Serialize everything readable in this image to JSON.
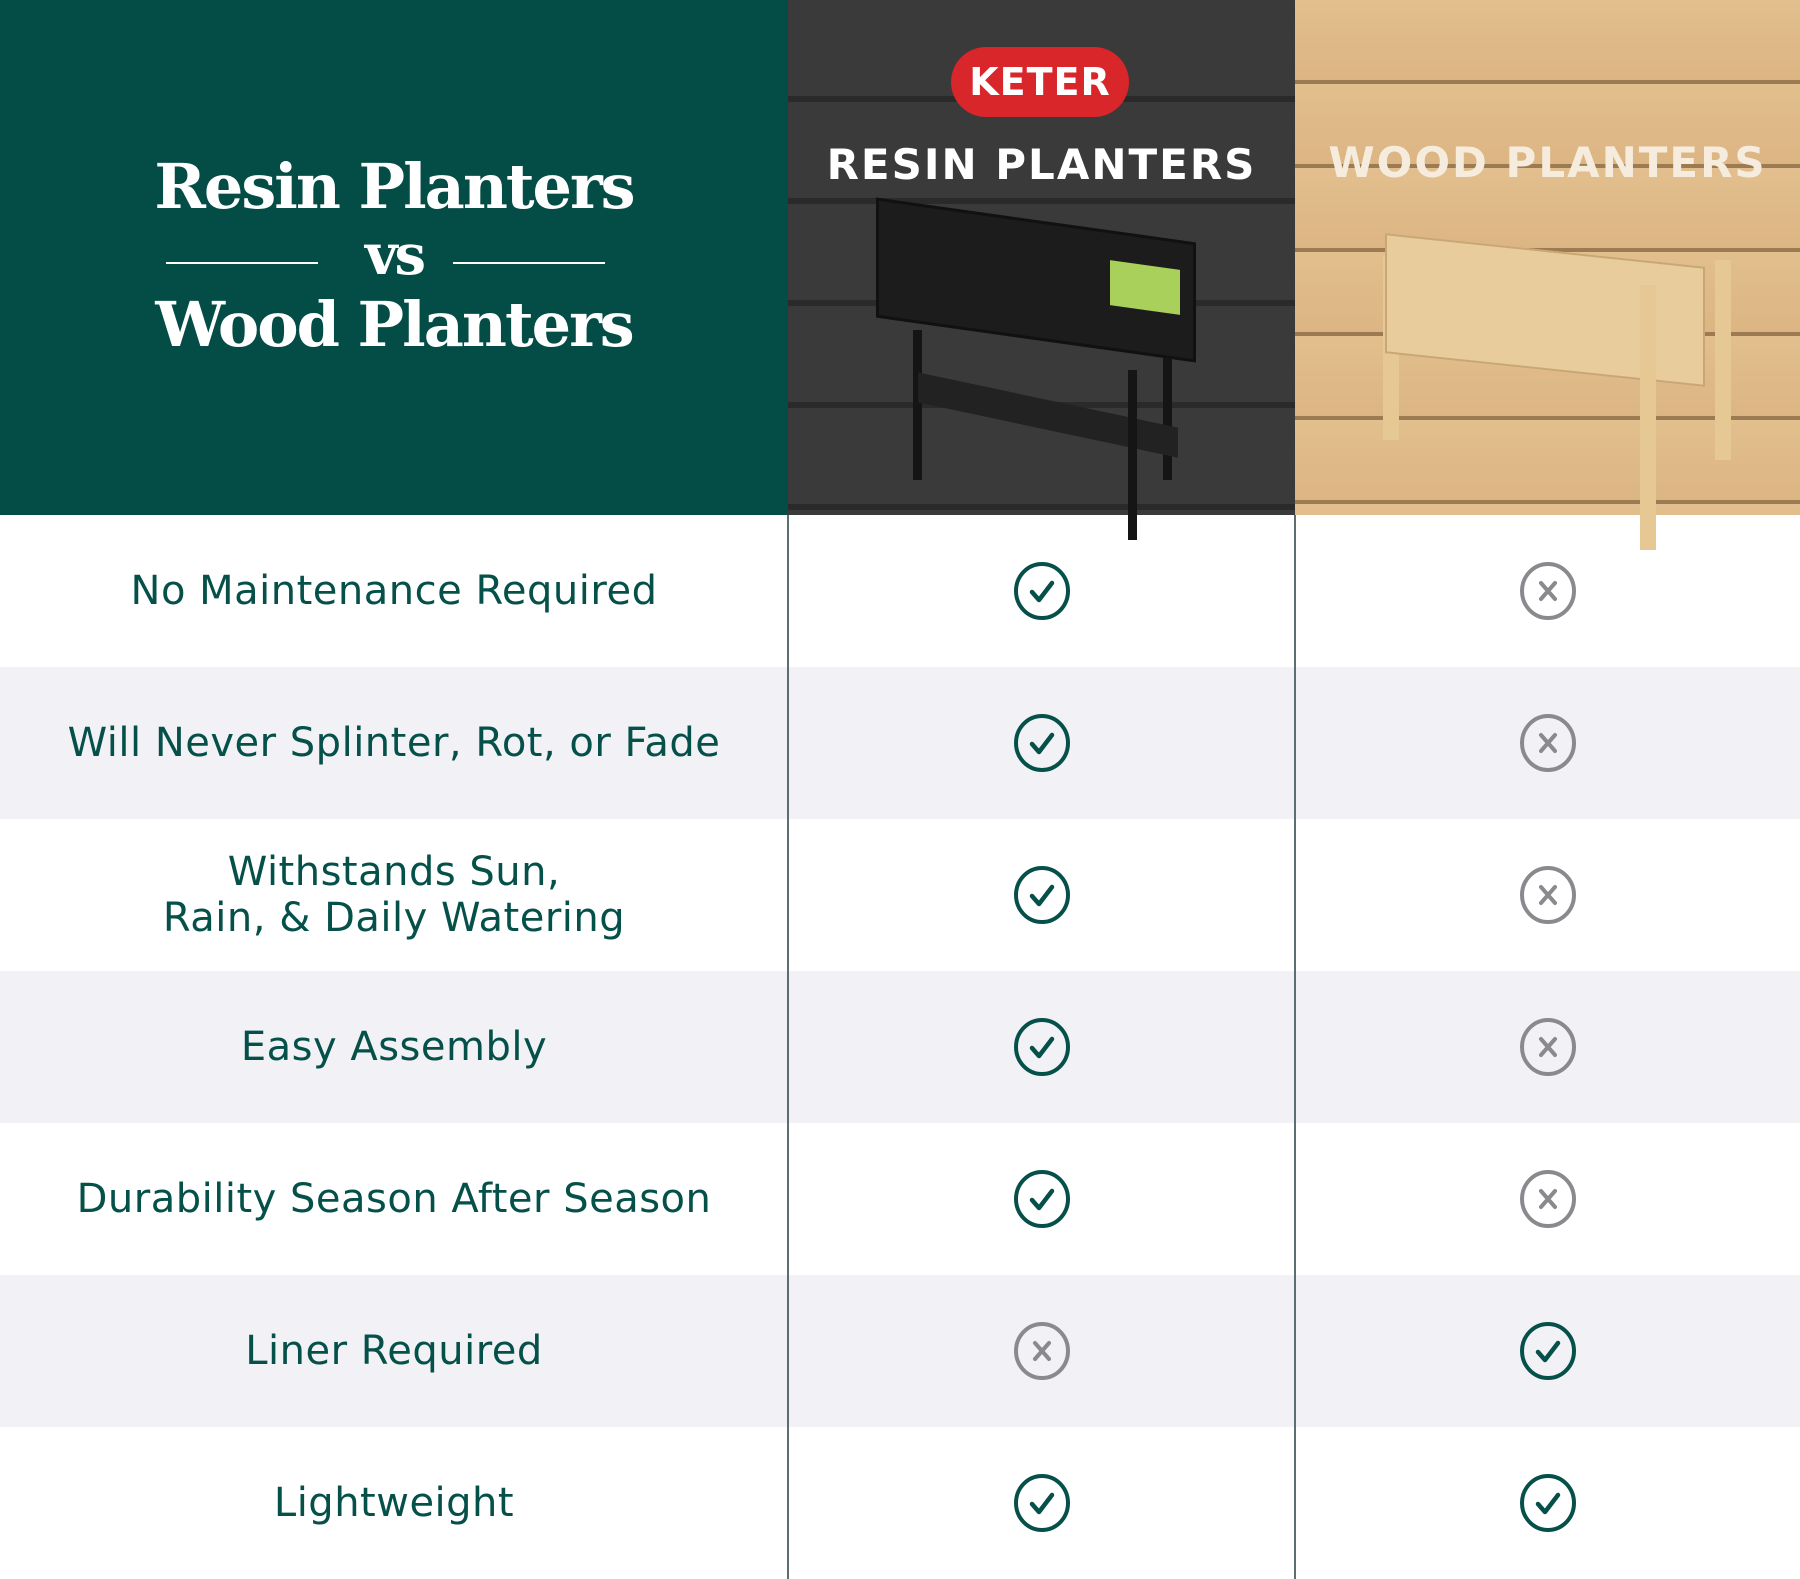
{
  "header": {
    "title_line1": "Resin Planters",
    "title_vs": "vs",
    "title_line2": "Wood Planters",
    "brand_logo": "KETER",
    "col1": "RESIN PLANTERS",
    "col2": "WOOD PLANTERS"
  },
  "colors": {
    "green": "#034d46",
    "check": "#06504a",
    "cross": "#8a8a8e",
    "logo_red": "#d8262a"
  },
  "rows": [
    {
      "label": "No Maintenance Required",
      "resin": "check",
      "wood": "cross"
    },
    {
      "label": "Will Never Splinter, Rot, or Fade",
      "resin": "check",
      "wood": "cross"
    },
    {
      "label": "Withstands Sun,\nRain, & Daily Watering",
      "resin": "check",
      "wood": "cross"
    },
    {
      "label": "Easy Assembly",
      "resin": "check",
      "wood": "cross"
    },
    {
      "label": "Durability Season After Season",
      "resin": "check",
      "wood": "cross"
    },
    {
      "label": "Liner Required",
      "resin": "cross",
      "wood": "check"
    },
    {
      "label": "Lightweight",
      "resin": "check",
      "wood": "check"
    }
  ]
}
